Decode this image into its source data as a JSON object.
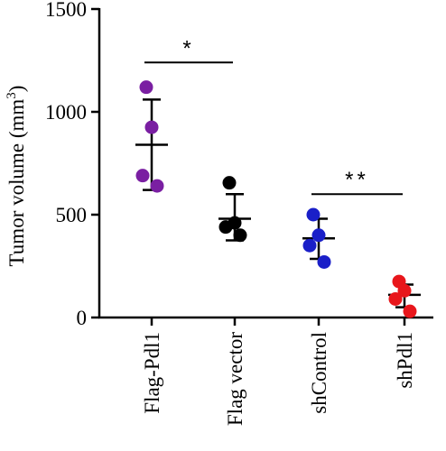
{
  "chart_data": {
    "type": "scatter",
    "ylabel": "Tumor volume (mm",
    "ylabel_superscript": "3",
    "ylabel_close": ")",
    "ylim": [
      0,
      1500
    ],
    "yticks": [
      0,
      500,
      1000,
      1500
    ],
    "ytick_labels": [
      "0",
      "500",
      "1000",
      "1500"
    ],
    "categories": [
      "Flag-Pdl1",
      "Flag vector",
      "shControl",
      "shPdl1"
    ],
    "colors": {
      "Flag-Pdl1": "#7a1fa2",
      "Flag vector": "#000000",
      "shControl": "#1a1fc8",
      "shPdl1": "#e8161b"
    },
    "groups": [
      {
        "category": "Flag-Pdl1",
        "points": [
          1120,
          925,
          690,
          640
        ],
        "mean": 840,
        "sd_upper": 1060,
        "sd_lower": 620
      },
      {
        "category": "Flag vector",
        "points": [
          655,
          460,
          440,
          400
        ],
        "mean": 480,
        "sd_upper": 600,
        "sd_lower": 375
      },
      {
        "category": "shControl",
        "points": [
          500,
          400,
          350,
          270
        ],
        "mean": 385,
        "sd_upper": 480,
        "sd_lower": 285
      },
      {
        "category": "shPdl1",
        "points": [
          175,
          130,
          90,
          30
        ],
        "mean": 110,
        "sd_upper": 160,
        "sd_lower": 50
      }
    ],
    "significance": [
      {
        "from": "Flag-Pdl1",
        "to": "Flag vector",
        "label": "*",
        "y": 1240
      },
      {
        "from": "shControl",
        "to": "shPdl1",
        "label": "**",
        "y": 600
      }
    ]
  }
}
